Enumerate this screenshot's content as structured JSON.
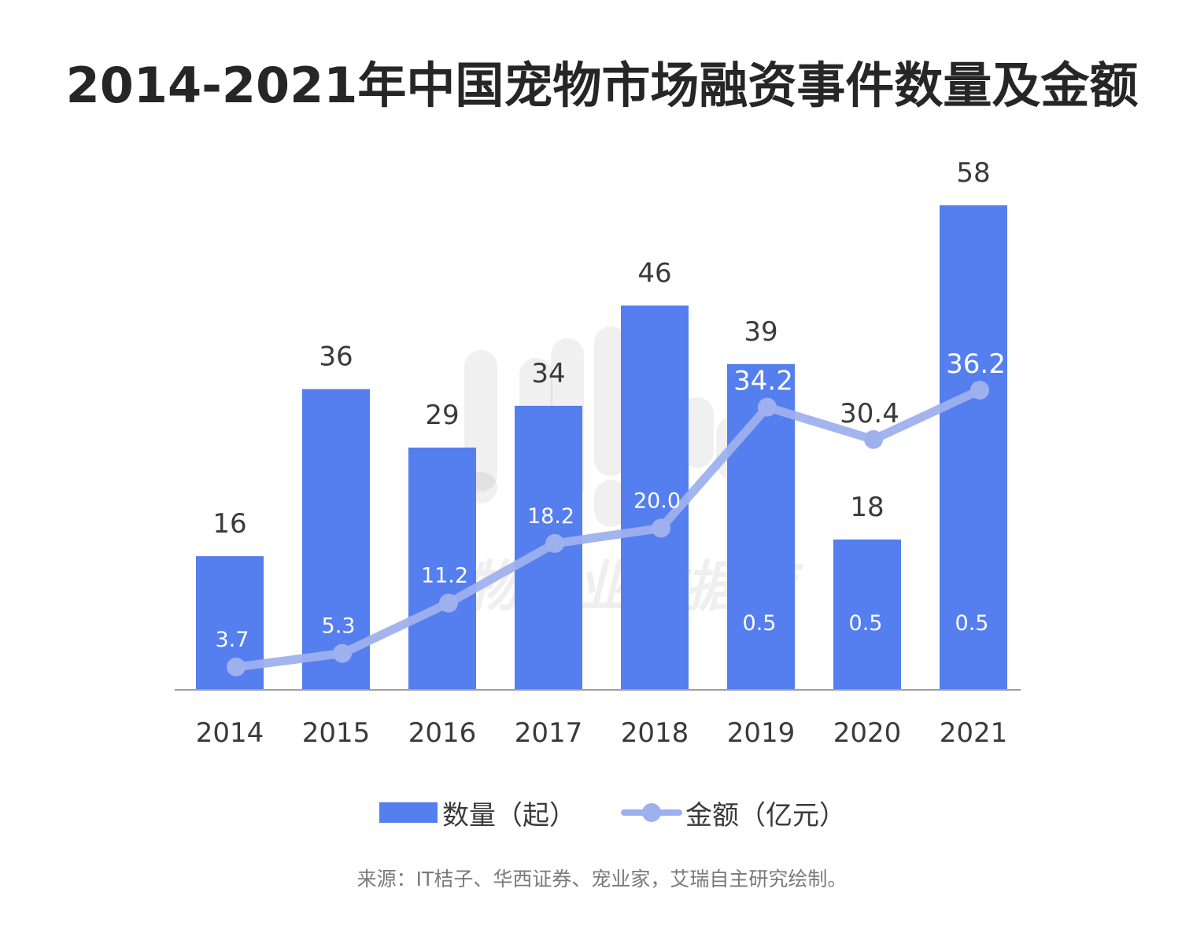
{
  "title": "2014-2021年中国宠物市场融资事件数量及金额",
  "watermark": "宠物行业数据库",
  "legend": {
    "bar_label": "数量（起）",
    "line_label": "金额（亿元）"
  },
  "source": "来源：IT桔子、华西证券、宠业家，艾瑞自主研究绘制。",
  "colors": {
    "bar": "#557EEE",
    "line": "#9EB0EE",
    "text_dark": "#3a3a3a",
    "text_light": "#ffffff"
  },
  "chart_data": {
    "type": "bar+line",
    "title": "2014-2021年中国宠物市场融资事件数量及金额",
    "categories": [
      "2014",
      "2015",
      "2016",
      "2017",
      "2018",
      "2019",
      "2020",
      "2021"
    ],
    "series": [
      {
        "name": "数量（起）",
        "type": "bar",
        "values": [
          16,
          36,
          29,
          34,
          46,
          39,
          18,
          58
        ],
        "labels": [
          "16",
          "36",
          "29",
          "34",
          "46",
          "39",
          "18",
          "58"
        ]
      },
      {
        "name": "金额（亿元）",
        "type": "line",
        "values": [
          3.7,
          5.3,
          11.2,
          18.2,
          20.0,
          34.2,
          30.4,
          36.2
        ],
        "labels": [
          "3.7",
          "5.3",
          "11.2",
          "18.2",
          "20.0",
          "34.2",
          "30.4",
          "36.2"
        ]
      }
    ],
    "bar_inner_labels": [
      "",
      "",
      "",
      "",
      "",
      "0.5",
      "0.5",
      "0.5"
    ],
    "xlabel": "",
    "ylabel": "",
    "ylim_bar": [
      0,
      58
    ],
    "ylim_line": [
      0,
      40
    ],
    "grid": false,
    "legend_position": "bottom"
  }
}
